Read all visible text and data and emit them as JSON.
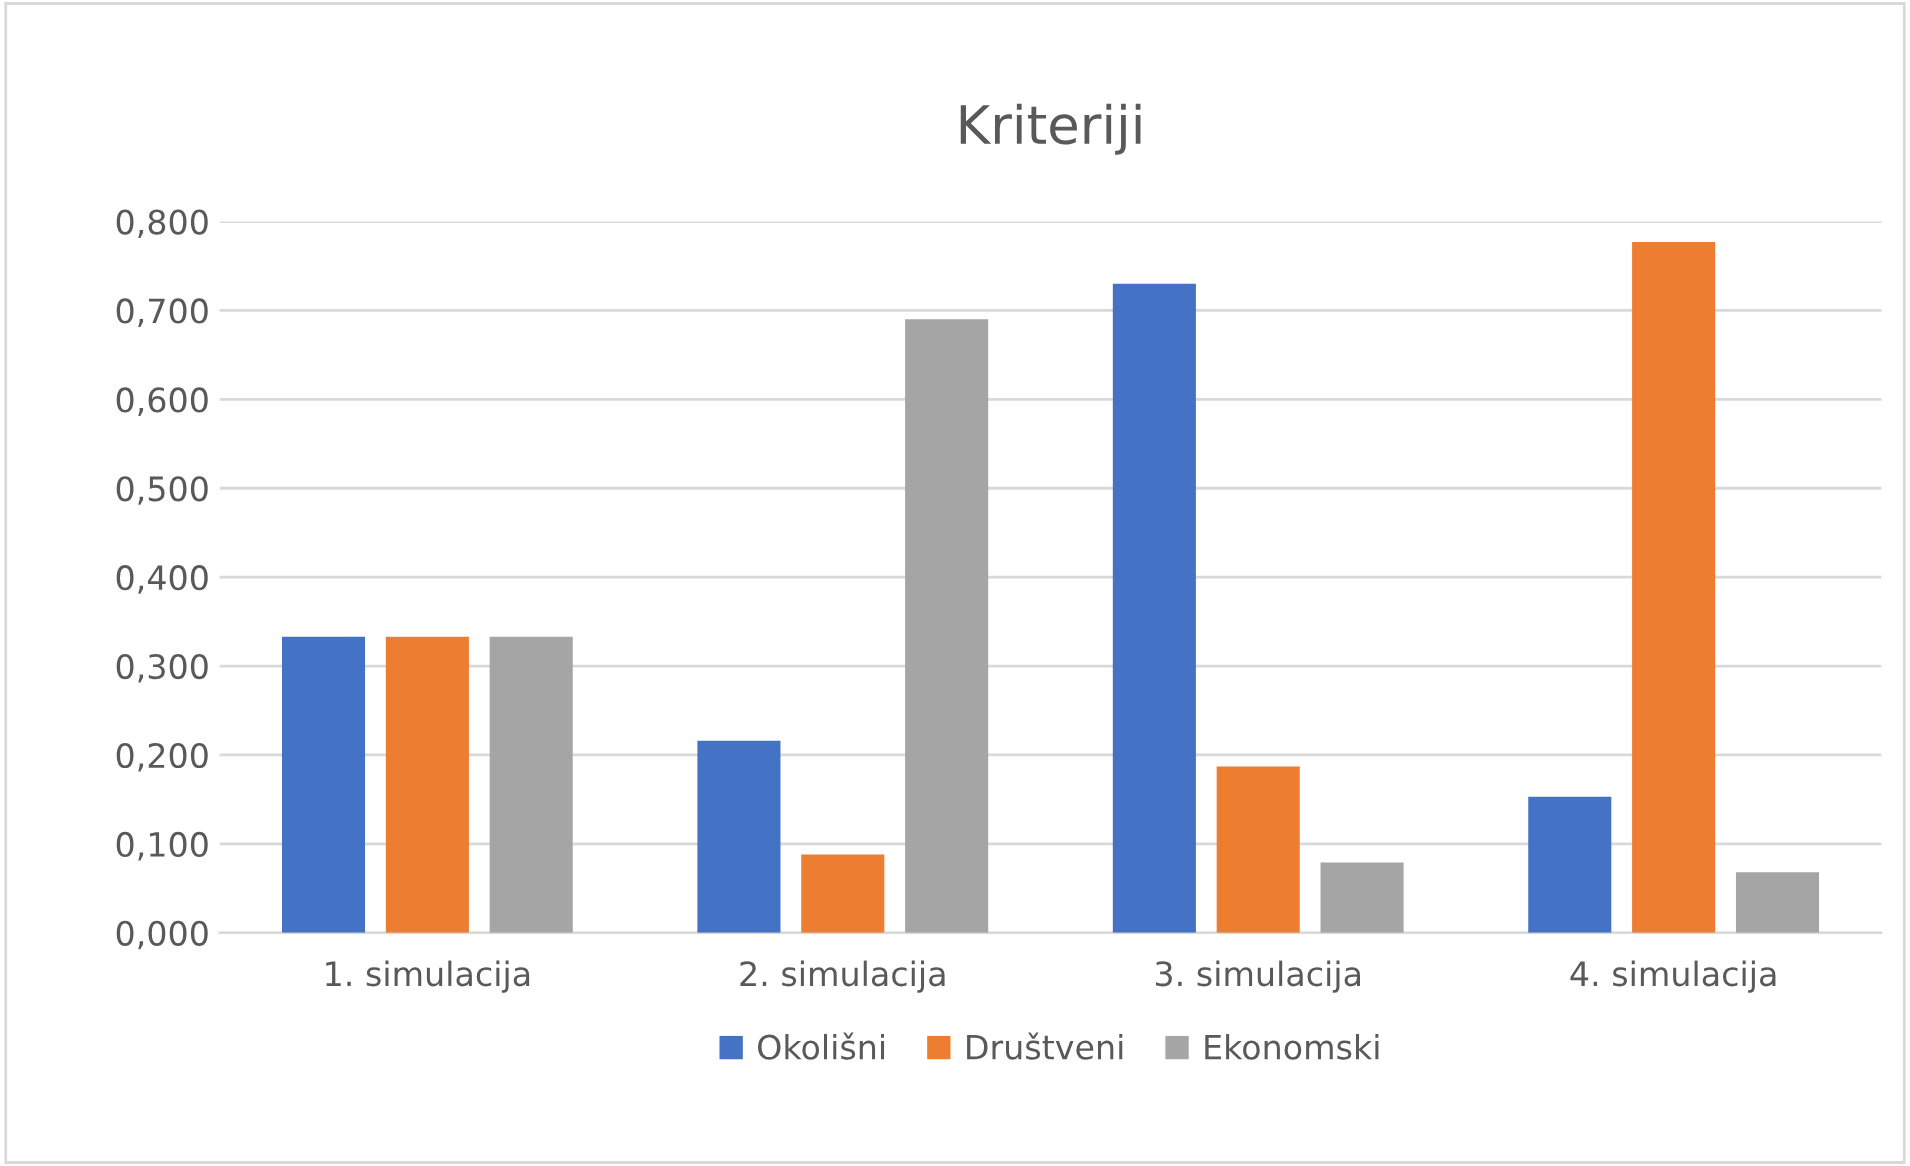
{
  "chart_data": {
    "type": "bar",
    "title": "Kriteriji",
    "categories": [
      "1. simulacija",
      "2. simulacija",
      "3. simulacija",
      "4. simulacija"
    ],
    "series": [
      {
        "name": "Okolišni",
        "color": "#4472c4",
        "values": [
          0.333,
          0.216,
          0.73,
          0.153
        ]
      },
      {
        "name": "Društveni",
        "color": "#ed7d31",
        "values": [
          0.333,
          0.088,
          0.187,
          0.777
        ]
      },
      {
        "name": "Ekonomski",
        "color": "#a5a5a5",
        "values": [
          0.333,
          0.69,
          0.079,
          0.068
        ]
      }
    ],
    "ylim": [
      0,
      0.8
    ],
    "yticks": [
      {
        "value": 0,
        "label": "0,000"
      },
      {
        "value": 0.1,
        "label": "0,100"
      },
      {
        "value": 0.2,
        "label": "0,200"
      },
      {
        "value": 0.3,
        "label": "0,300"
      },
      {
        "value": 0.4,
        "label": "0,400"
      },
      {
        "value": 0.5,
        "label": "0,500"
      },
      {
        "value": 0.6,
        "label": "0,600"
      },
      {
        "value": 0.7,
        "label": "0,700"
      },
      {
        "value": 0.8,
        "label": "0,800"
      }
    ],
    "grid": "y",
    "legend": "bottom"
  }
}
